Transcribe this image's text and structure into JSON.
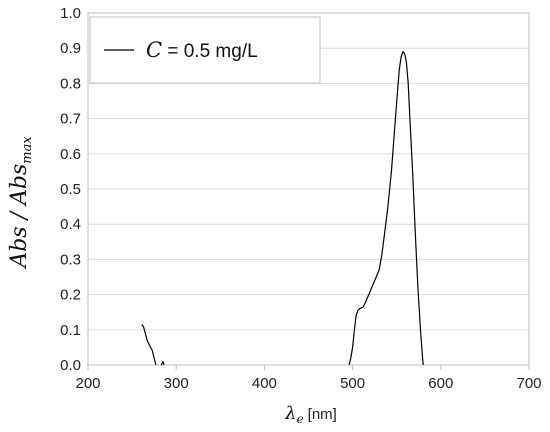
{
  "chart_data": {
    "type": "line",
    "xlabel": {
      "symbol": "λ",
      "subscript": "e",
      "unit": "[nm]"
    },
    "ylabel": {
      "base": "Abs / Abs",
      "subscript": "max"
    },
    "xlim": [
      200,
      700
    ],
    "ylim": [
      0,
      1.0
    ],
    "x_ticks": [
      "200",
      "300",
      "400",
      "500",
      "600",
      "700"
    ],
    "y_ticks": [
      "0.0",
      "0.1",
      "0.2",
      "0.3",
      "0.4",
      "0.5",
      "0.6",
      "0.7",
      "0.8",
      "0.9",
      "1.0"
    ],
    "grid": "horizontal",
    "legend_position": "top-left",
    "legend": {
      "var": "C",
      "text": " = 0.5 mg/L"
    },
    "line_color": "#000000",
    "grid_color": "#d9d9d9",
    "series": [
      {
        "segments": [
          [
            [
              261,
              0.115
            ],
            [
              263,
              0.108
            ],
            [
              265,
              0.09
            ],
            [
              267,
              0.07
            ],
            [
              270,
              0.055
            ],
            [
              273,
              0.04
            ],
            [
              275,
              0.02
            ],
            [
              277,
              0.0
            ]
          ],
          [
            [
              283,
              0.0
            ],
            [
              285,
              0.01
            ],
            [
              286,
              0.0
            ]
          ],
          [
            [
              496,
              0.0
            ],
            [
              498,
              0.02
            ],
            [
              500,
              0.05
            ],
            [
              502,
              0.1
            ],
            [
              504,
              0.14
            ],
            [
              506,
              0.155
            ],
            [
              508,
              0.16
            ],
            [
              512,
              0.165
            ],
            [
              515,
              0.18
            ],
            [
              520,
              0.21
            ],
            [
              525,
              0.24
            ],
            [
              530,
              0.27
            ],
            [
              533,
              0.31
            ],
            [
              536,
              0.37
            ],
            [
              540,
              0.45
            ],
            [
              544,
              0.55
            ],
            [
              548,
              0.68
            ],
            [
              551,
              0.78
            ],
            [
              553,
              0.84
            ],
            [
              555,
              0.875
            ],
            [
              557,
              0.89
            ],
            [
              559,
              0.885
            ],
            [
              561,
              0.86
            ],
            [
              563,
              0.8
            ],
            [
              565,
              0.7
            ],
            [
              568,
              0.55
            ],
            [
              571,
              0.38
            ],
            [
              574,
              0.22
            ],
            [
              577,
              0.1
            ],
            [
              579,
              0.03
            ],
            [
              580,
              0.0
            ]
          ]
        ]
      }
    ]
  }
}
